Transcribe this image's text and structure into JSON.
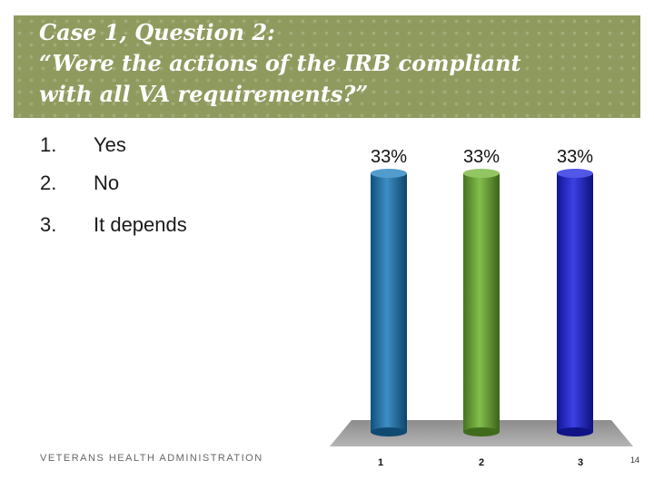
{
  "header": {
    "title_lines": [
      "Case 1, Question 2:",
      "“Were the actions of the IRB compliant",
      "with all VA requirements?”"
    ]
  },
  "options": [
    {
      "num": "1.",
      "text": "Yes"
    },
    {
      "num": "2.",
      "text": "No"
    },
    {
      "num": "3.",
      "text": "It depends"
    }
  ],
  "footer": {
    "org": "VETERANS HEALTH ADMINISTRATION",
    "page": "14"
  },
  "chart_data": {
    "type": "bar",
    "categories": [
      "1",
      "2",
      "3"
    ],
    "values": [
      33,
      33,
      33
    ],
    "data_labels": [
      "33%",
      "33%",
      "33%"
    ],
    "colors": [
      "#1a7bbd",
      "#6db32e",
      "#1a1fe0"
    ],
    "ylim": [
      0,
      33
    ],
    "grid": false,
    "legend": "none",
    "title": "",
    "xlabel": "",
    "ylabel": ""
  }
}
